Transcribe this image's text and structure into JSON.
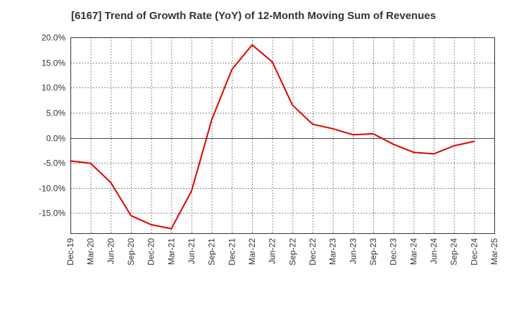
{
  "chart_data": {
    "type": "line",
    "title": "[6167]  Trend of Growth Rate (YoY) of 12-Month Moving Sum of Revenues",
    "xlabel": "",
    "ylabel": "",
    "ylim": [
      -19,
      20
    ],
    "grid": true,
    "x": [
      "Dec-19",
      "Mar-20",
      "Jun-20",
      "Sep-20",
      "Dec-20",
      "Mar-21",
      "Jun-21",
      "Sep-21",
      "Dec-21",
      "Mar-22",
      "Jun-22",
      "Sep-22",
      "Dec-22",
      "Mar-23",
      "Jun-23",
      "Sep-23",
      "Dec-23",
      "Mar-24",
      "Jun-24",
      "Sep-24",
      "Dec-24",
      "Mar-25"
    ],
    "yticks": [
      20.0,
      15.0,
      10.0,
      5.0,
      0.0,
      -5.0,
      -10.0,
      -15.0
    ],
    "ytick_labels": [
      "20.0%",
      "15.0%",
      "10.0%",
      "5.0%",
      "0.0%",
      "-5.0%",
      "-10.0%",
      "-15.0%"
    ],
    "series": [
      {
        "color": "#dd0000",
        "values": [
          -4.6,
          -5.1,
          -8.9,
          -15.5,
          -17.3,
          -18.1,
          -10.6,
          3.6,
          13.6,
          18.5,
          15.1,
          6.5,
          2.7,
          1.8,
          0.6,
          0.8,
          -1.3,
          -2.9,
          -3.2,
          -1.6,
          -0.7,
          null
        ]
      }
    ]
  }
}
